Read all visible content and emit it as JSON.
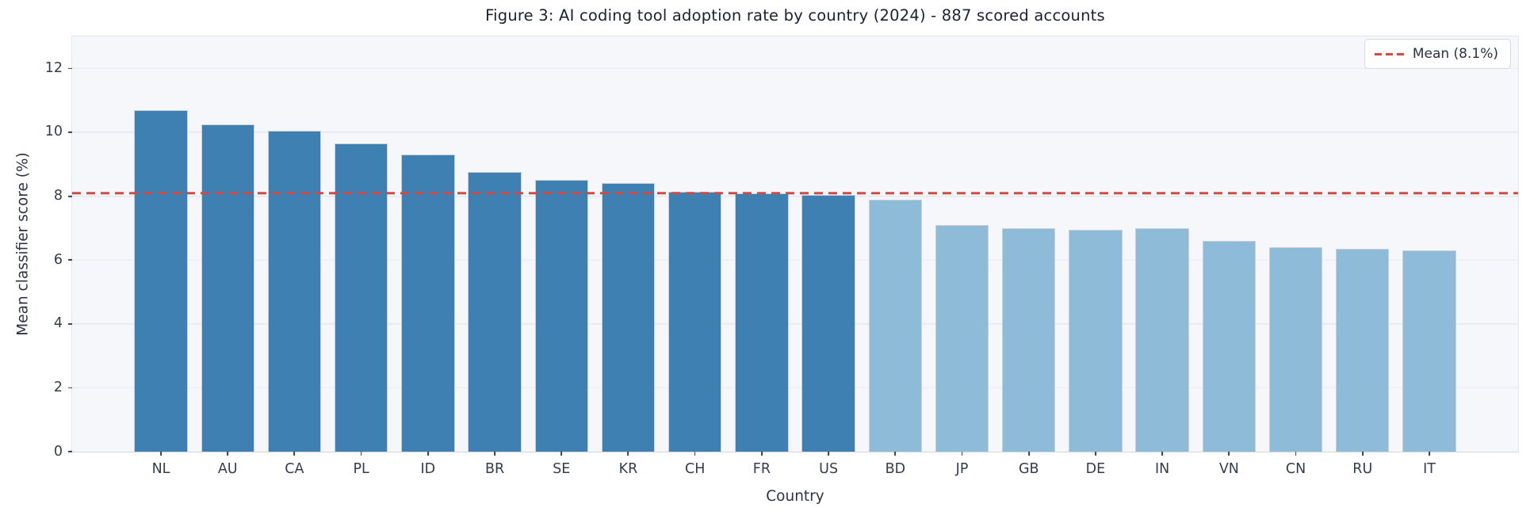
{
  "chart_data": {
    "type": "bar",
    "title": "Figure 3: AI coding tool adoption rate by country (2024) - 887 scored accounts",
    "xlabel": "Country",
    "ylabel": "Mean classifier score (%)",
    "categories": [
      "NL",
      "AU",
      "CA",
      "PL",
      "ID",
      "BR",
      "SE",
      "KR",
      "CH",
      "FR",
      "US",
      "BD",
      "JP",
      "GB",
      "DE",
      "IN",
      "VN",
      "CN",
      "RU",
      "IT"
    ],
    "values": [
      10.7,
      10.25,
      10.05,
      9.65,
      9.3,
      8.75,
      8.5,
      8.4,
      8.15,
      8.1,
      8.05,
      7.9,
      7.1,
      7.0,
      6.95,
      7.0,
      6.6,
      6.4,
      6.35,
      6.3
    ],
    "yticks": [
      0,
      2,
      4,
      6,
      8,
      10,
      12
    ],
    "ylim": [
      0,
      13.0
    ],
    "xlim_index_units": [
      -1.33,
      20.33
    ],
    "bar_width_index_units": 0.8,
    "grid": true,
    "mean_line": {
      "value": 8.1,
      "label": "Mean (8.1%)"
    },
    "legend": {
      "position": "upper right",
      "entries": [
        {
          "label": "Mean (8.1%)",
          "style": "dashed"
        }
      ]
    },
    "colors": {
      "dark_bar": "#3e80b2",
      "light_bar": "#8dbbd8",
      "dark_bar_count": 11,
      "bar_edge": "#c9cfdf",
      "mean_line": "#cf4a43",
      "plot_background": "#f6f7fa",
      "gridline": "#e8eaf2",
      "tick_text": "#363b4e",
      "title_text": "#1c2130"
    }
  }
}
